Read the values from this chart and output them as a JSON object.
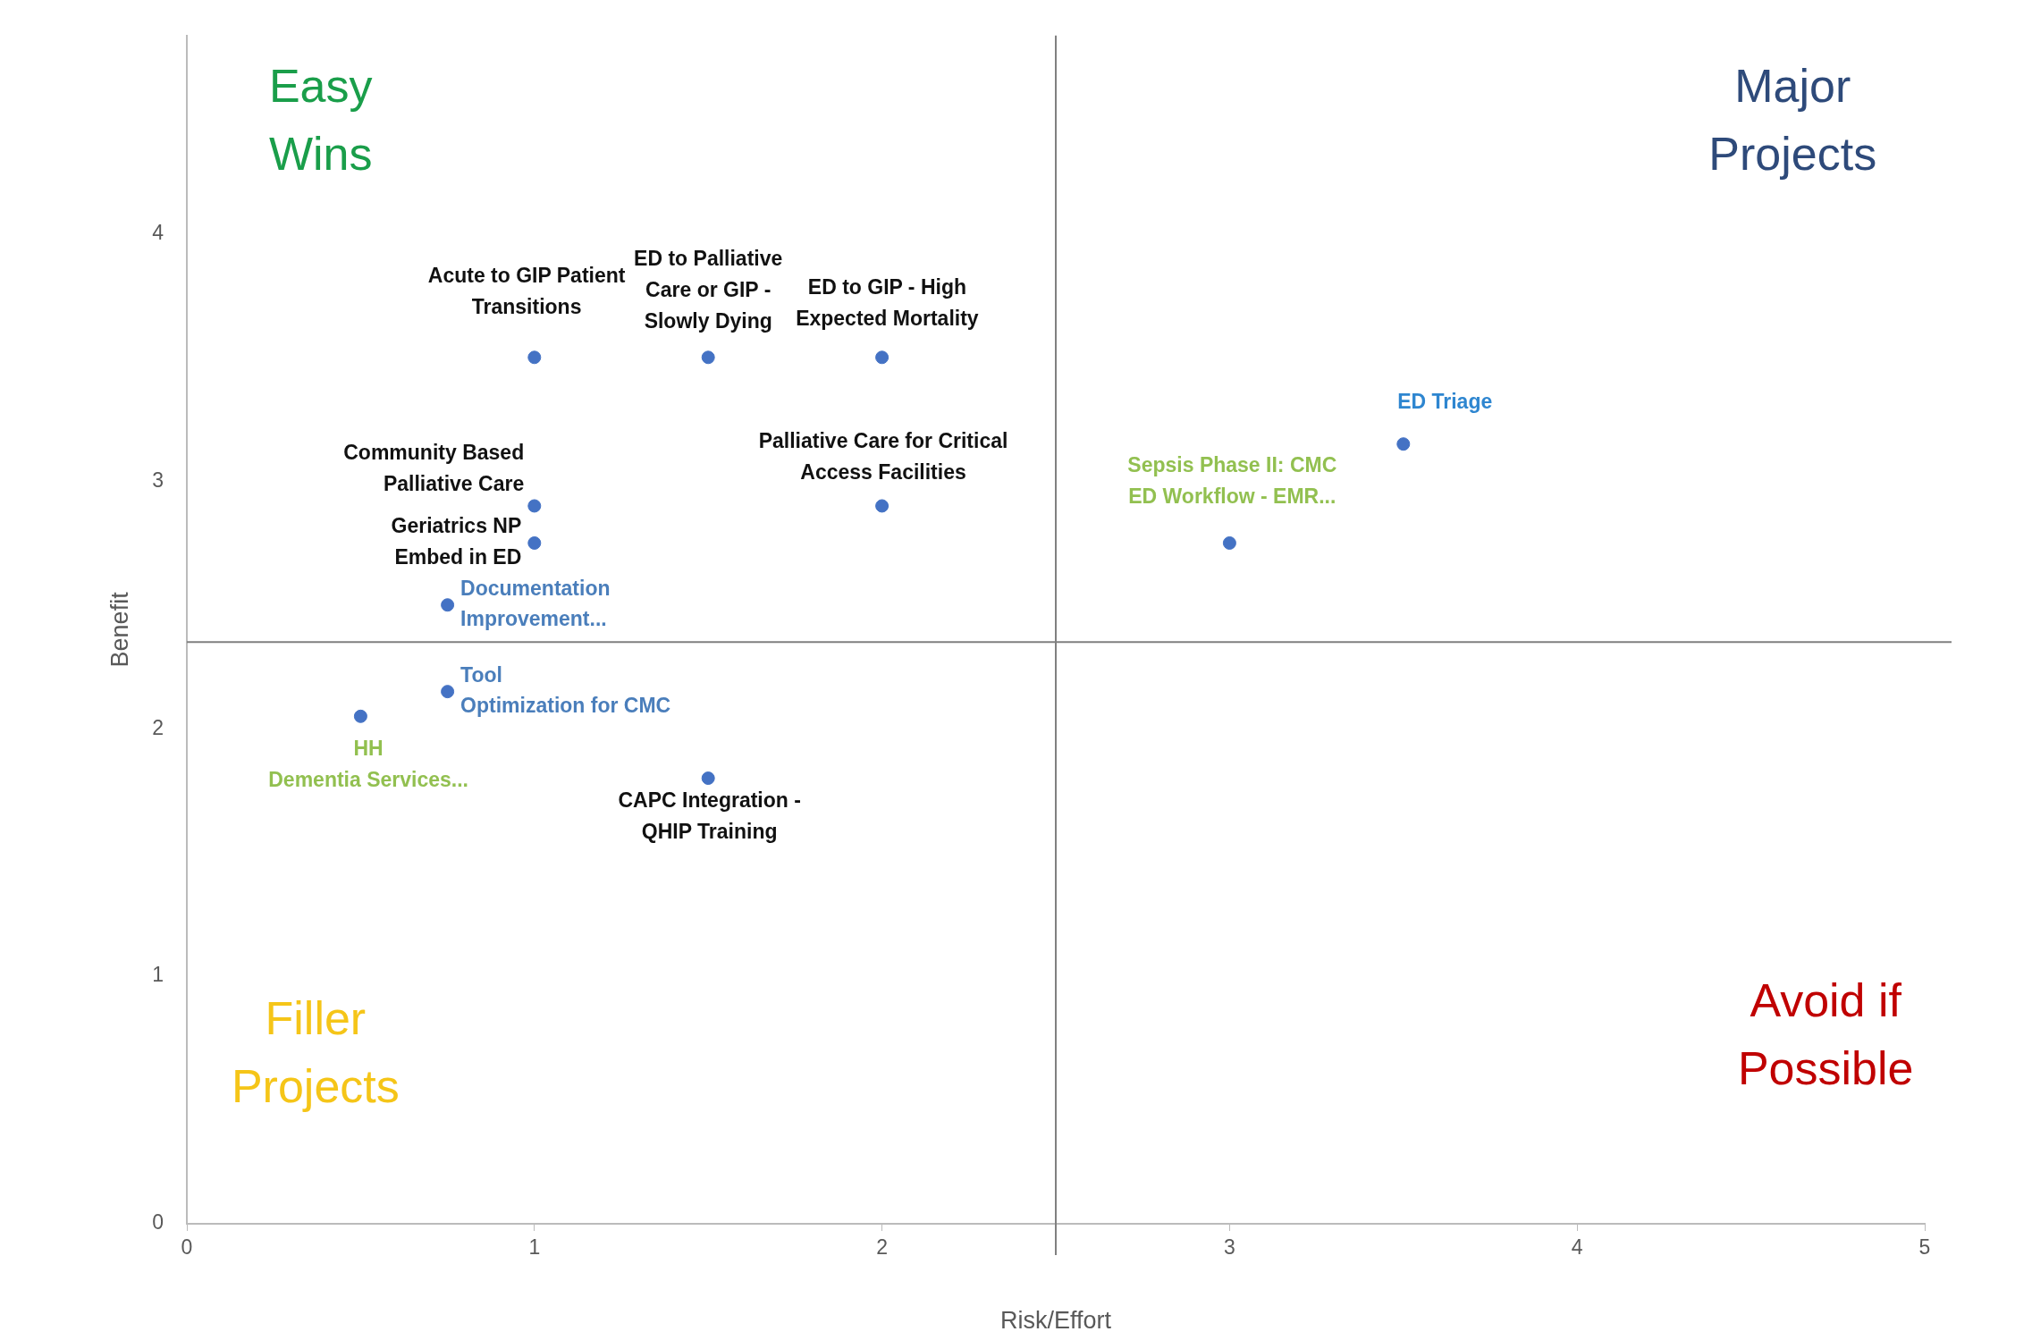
{
  "chart_data": {
    "type": "scatter",
    "xlabel": "Risk/Effort",
    "ylabel": "Benefit",
    "xlim": [
      0,
      5
    ],
    "xticks": [
      0,
      1,
      2,
      3,
      4,
      5
    ],
    "ylim": [
      0,
      4.8
    ],
    "yticks": [
      0,
      1,
      2,
      3,
      4
    ],
    "grid": false,
    "legend": false,
    "marker": "circle",
    "ref_lines": [
      {
        "axis": "x",
        "value": 2.5,
        "color": "#808080"
      },
      {
        "axis": "y",
        "value": 2.35,
        "color": "#808080"
      }
    ],
    "annotations": [
      "Easy\nWins",
      "Major\nProjects",
      "Filler\nProjects",
      "Avoid if\nPossible"
    ],
    "series": [
      {
        "name": "Acute to GIP Patient\nTransitions",
        "color": "#4472c4",
        "x": [
          1
        ],
        "values": [
          3.5
        ]
      },
      {
        "name": "ED to Palliative\nCare or GIP -\nSlowly Dying",
        "color": "#4472c4",
        "x": [
          1.5
        ],
        "values": [
          3.5
        ]
      },
      {
        "name": "ED to GIP - High\nExpected Mortality",
        "color": "#4472c4",
        "x": [
          2
        ],
        "values": [
          3.5
        ]
      },
      {
        "name": "Community Based\nPalliative Care",
        "color": "#4472c4",
        "x": [
          1
        ],
        "values": [
          2.9
        ]
      },
      {
        "name": "Geriatrics NP\nEmbed in ED",
        "color": "#4472c4",
        "x": [
          1
        ],
        "values": [
          2.75
        ]
      },
      {
        "name": "Palliative Care for Critical\nAccess Facilities",
        "color": "#4472c4",
        "x": [
          2
        ],
        "values": [
          2.9
        ]
      },
      {
        "name": "Documentation\nImprovement...",
        "color": "#4472c4",
        "x": [
          0.75
        ],
        "values": [
          2.5
        ]
      },
      {
        "name": "Tool\nOptimization for CMC",
        "color": "#4472c4",
        "x": [
          0.75
        ],
        "values": [
          2.15
        ]
      },
      {
        "name": "HH\nDementia Services...",
        "color": "#4472c4",
        "x": [
          0.5
        ],
        "values": [
          2.05
        ]
      },
      {
        "name": "CAPC Integration -\nQHIP Training",
        "color": "#4472c4",
        "x": [
          1.5
        ],
        "values": [
          1.8
        ]
      },
      {
        "name": "Sepsis Phase II: CMC\nED Workflow - EMR...",
        "color": "#4472c4",
        "x": [
          3
        ],
        "values": [
          2.75
        ]
      },
      {
        "name": "ED Triage",
        "color": "#4472c4",
        "x": [
          3.5
        ],
        "values": [
          3.15
        ]
      }
    ]
  }
}
